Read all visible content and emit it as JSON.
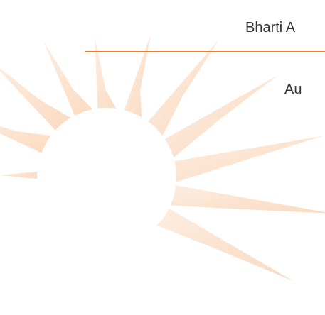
{
  "header": {
    "title": "Bharti A",
    "subtitle": "Au"
  }
}
